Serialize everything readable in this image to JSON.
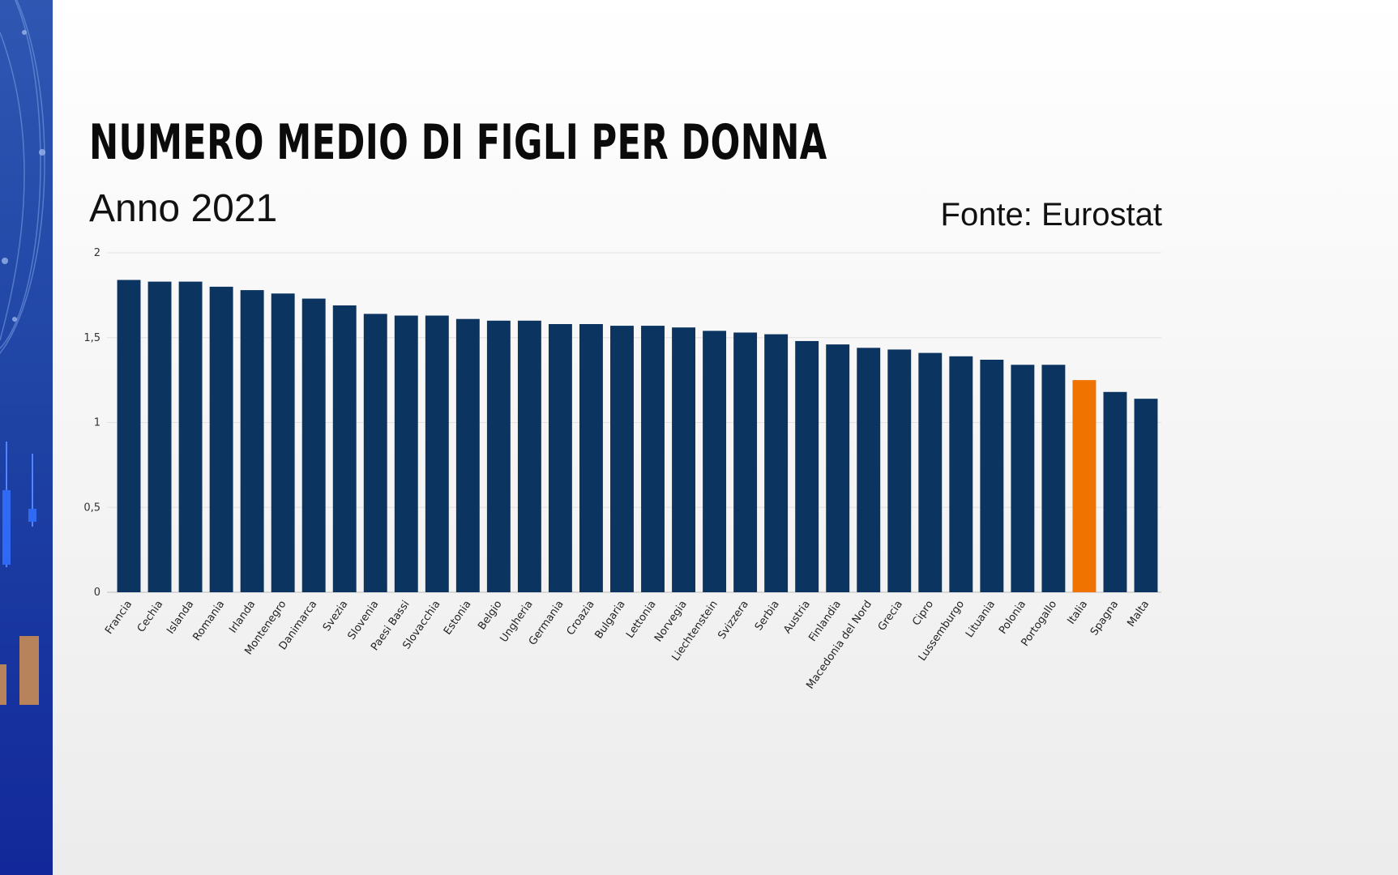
{
  "header": {
    "title": "NUMERO MEDIO DI FIGLI PER DONNA",
    "subtitle": "Anno 2021",
    "source": "Fonte:  Eurostat"
  },
  "colors": {
    "bar": "#0b3461",
    "highlight": "#f07300",
    "gridline": "#e2e2e2",
    "side_panel": "#1f44a5"
  },
  "chart_data": {
    "type": "bar",
    "title": "NUMERO MEDIO DI FIGLI PER DONNA",
    "subtitle": "Anno 2021",
    "xlabel": "",
    "ylabel": "",
    "ylim": [
      0,
      2
    ],
    "yticks": [
      0,
      0.5,
      1,
      1.5,
      2
    ],
    "ytick_labels": [
      "0",
      "0,5",
      "1",
      "1,5",
      "2"
    ],
    "grid": true,
    "highlight_category": "Italia",
    "categories": [
      "Francia",
      "Cechia",
      "Islanda",
      "Romania",
      "Irlanda",
      "Montenegro",
      "Danimarca",
      "Svezia",
      "Slovenia",
      "Paesi Bassi",
      "Slovacchia",
      "Estonia",
      "Belgio",
      "Ungheria",
      "Germania",
      "Croazia",
      "Bulgaria",
      "Lettonia",
      "Norvegia",
      "Liechtenstein",
      "Svizzera",
      "Serbia",
      "Austria",
      "Finlandia",
      "Macedonia del Nord",
      "Grecia",
      "Cipro",
      "Lussemburgo",
      "Lituania",
      "Polonia",
      "Portogallo",
      "Italia",
      "Spagna",
      "Malta"
    ],
    "values": [
      1.84,
      1.83,
      1.83,
      1.8,
      1.78,
      1.76,
      1.73,
      1.69,
      1.64,
      1.63,
      1.63,
      1.61,
      1.6,
      1.6,
      1.58,
      1.58,
      1.57,
      1.57,
      1.56,
      1.54,
      1.53,
      1.52,
      1.48,
      1.46,
      1.44,
      1.43,
      1.41,
      1.39,
      1.37,
      1.34,
      1.34,
      1.25,
      1.18,
      1.14
    ]
  }
}
